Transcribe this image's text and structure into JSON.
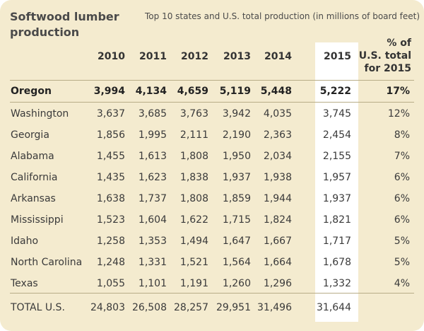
{
  "chart_data": {
    "type": "table",
    "title": "Softwood lumber production",
    "subtitle": "Top 10 states and U.S. total production (in millions of board feet)",
    "columns": [
      "2010",
      "2011",
      "2012",
      "2013",
      "2014",
      "2015"
    ],
    "pct_header": [
      "% of",
      "U.S. total",
      "for 2015"
    ],
    "highlight_column": "2015",
    "rows": [
      {
        "state": "Oregon",
        "values": [
          "3,994",
          "4,134",
          "4,659",
          "5,119",
          "5,448",
          "5,222"
        ],
        "pct": "17%",
        "bold": true
      },
      {
        "state": "Washington",
        "values": [
          "3,637",
          "3,685",
          "3,763",
          "3,942",
          "4,035",
          "3,745"
        ],
        "pct": "12%"
      },
      {
        "state": "Georgia",
        "values": [
          "1,856",
          "1,995",
          "2,111",
          "2,190",
          "2,363",
          "2,454"
        ],
        "pct": "8%"
      },
      {
        "state": "Alabama",
        "values": [
          "1,455",
          "1,613",
          "1,808",
          "1,950",
          "2,034",
          "2,155"
        ],
        "pct": "7%"
      },
      {
        "state": "California",
        "values": [
          "1,435",
          "1,623",
          "1,838",
          "1,937",
          "1,938",
          "1,957"
        ],
        "pct": "6%"
      },
      {
        "state": "Arkansas",
        "values": [
          "1,638",
          "1,737",
          "1,808",
          "1,859",
          "1,944",
          "1,937"
        ],
        "pct": "6%"
      },
      {
        "state": "Mississippi",
        "values": [
          "1,523",
          "1,604",
          "1,622",
          "1,715",
          "1,824",
          "1,821"
        ],
        "pct": "6%"
      },
      {
        "state": "Idaho",
        "values": [
          "1,258",
          "1,353",
          "1,494",
          "1,647",
          "1,667",
          "1,717"
        ],
        "pct": "5%"
      },
      {
        "state": "North Carolina",
        "values": [
          "1,248",
          "1,331",
          "1,521",
          "1,564",
          "1,664",
          "1,678"
        ],
        "pct": "5%"
      },
      {
        "state": "Texas",
        "values": [
          "1,055",
          "1,101",
          "1,191",
          "1,260",
          "1,296",
          "1,332"
        ],
        "pct": "4%"
      }
    ],
    "total": {
      "state": "TOTAL U.S.",
      "values": [
        "24,803",
        "26,508",
        "28,257",
        "29,951",
        "31,496",
        "31,644"
      ],
      "pct": ""
    }
  },
  "colors": {
    "background": "#f4ebcf",
    "highlight": "#ffffff",
    "rule": "#b8ad88",
    "text": "#3a3a3a"
  }
}
